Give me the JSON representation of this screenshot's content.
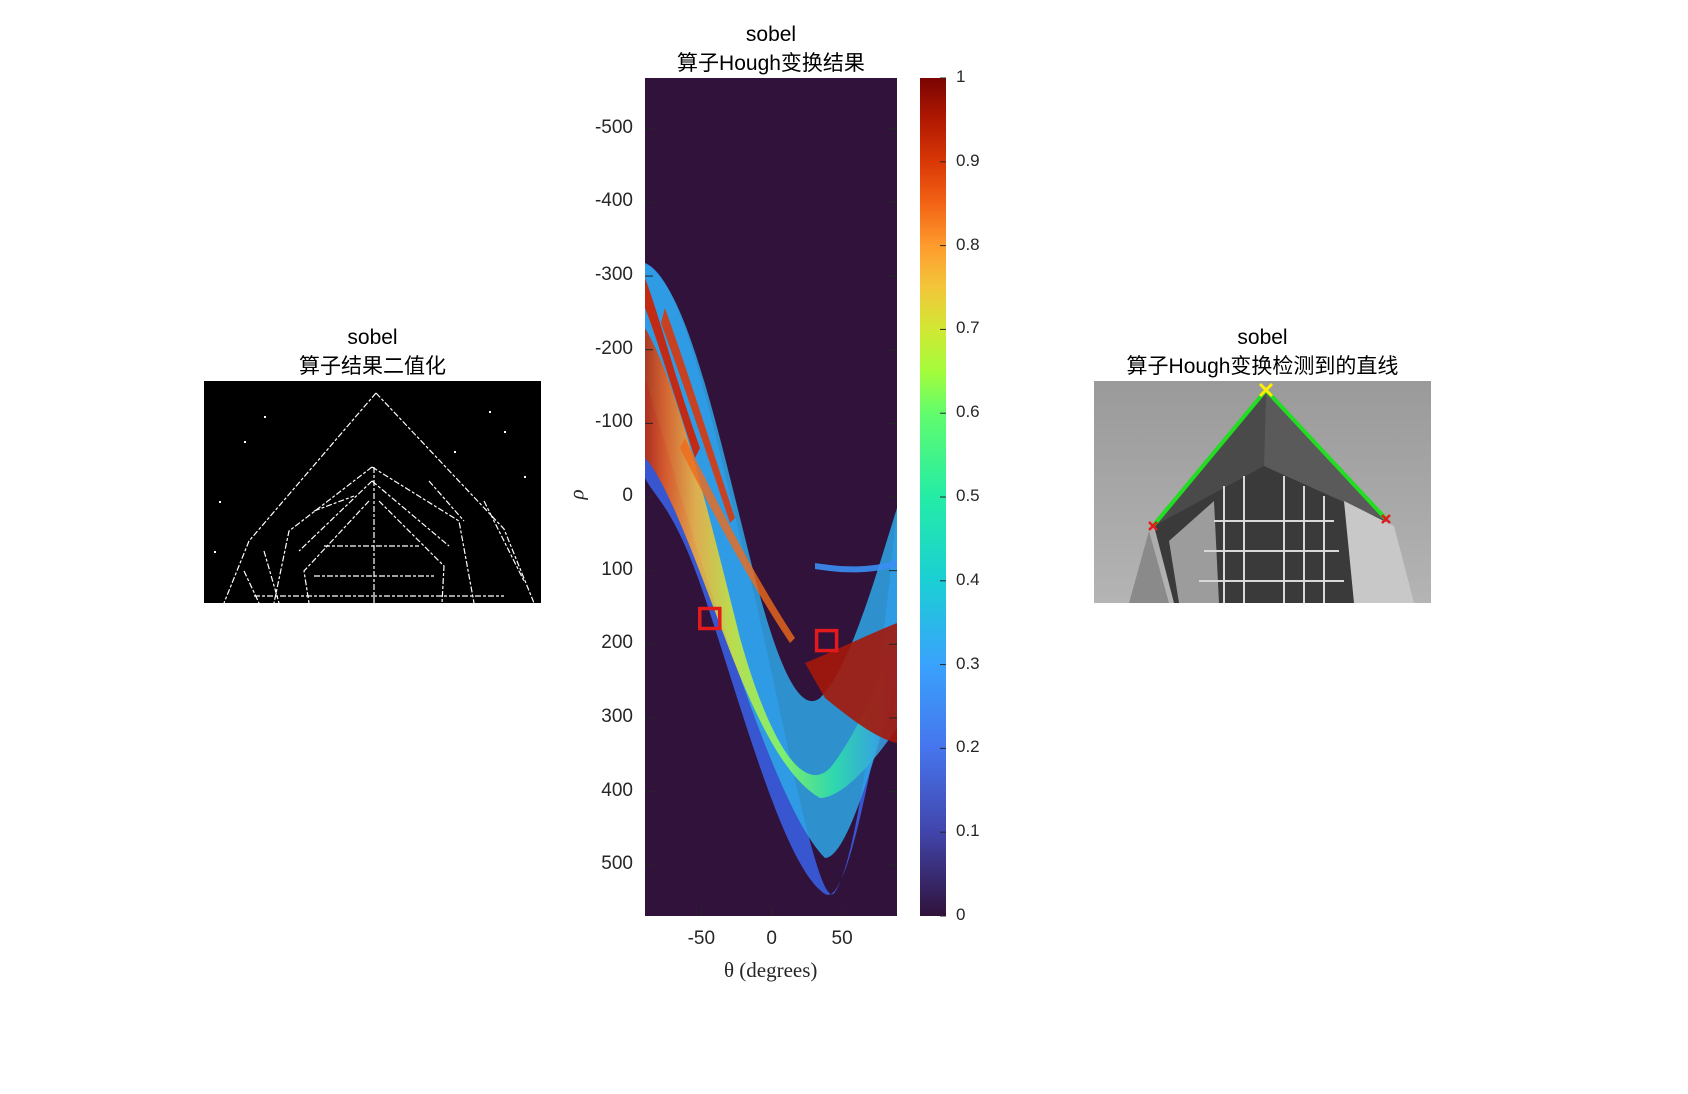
{
  "figure": {
    "left_panel": {
      "title_line1": "sobel",
      "title_line2": "算子结果二值化"
    },
    "middle_panel": {
      "title_line1": "sobel",
      "title_line2": "算子Hough变换结果",
      "xlabel": "θ (degrees)",
      "ylabel": "ρ",
      "colorbar_ticks": [
        "0",
        "0.1",
        "0.2",
        "0.3",
        "0.4",
        "0.5",
        "0.6",
        "0.7",
        "0.8",
        "0.9",
        "1"
      ],
      "colormap": "turbo",
      "background_color": "#30123b",
      "peak_marker_color": "#e31a1c"
    },
    "right_panel": {
      "title_line1": "sobel",
      "title_line2": "算子Hough变换检测到的直线",
      "line_color": "#22dd22",
      "start_marker_color": "#ffee00",
      "end_marker_color": "#e31a1c"
    }
  },
  "chart_data": [
    {
      "type": "heatmap",
      "title": "sobel 算子Hough变换结果",
      "xlabel": "θ (degrees)",
      "ylabel": "ρ",
      "xlim": [
        -90,
        89
      ],
      "ylim": [
        -569,
        569
      ],
      "y_reversed": true,
      "x_ticks": [
        -50,
        0,
        50
      ],
      "y_ticks": [
        -500,
        -400,
        -300,
        -200,
        -100,
        0,
        100,
        200,
        300,
        400,
        500
      ],
      "colorbar_range": [
        0,
        1
      ],
      "peaks": [
        {
          "theta": -44,
          "rho": 165
        },
        {
          "theta": 39,
          "rho": 195
        }
      ]
    }
  ]
}
